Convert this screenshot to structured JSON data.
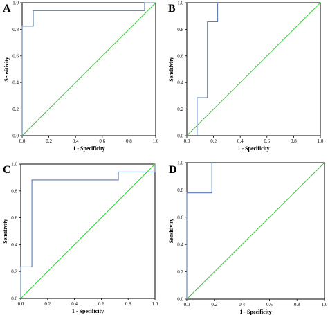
{
  "colors": {
    "roc": "#5b7cb4",
    "reference": "#3ec23e",
    "frame": "#000000"
  },
  "chart_data": [
    {
      "panel": "A",
      "type": "line",
      "xlabel": "1 - Specificity",
      "ylabel": "Sensitivity",
      "xlim": [
        0,
        1
      ],
      "ylim": [
        0,
        1
      ],
      "xticks": [
        "0.0",
        "0.2",
        "0.4",
        "0.6",
        "0.8",
        "1.0"
      ],
      "yticks": [
        "0.0",
        "0.2",
        "0.4",
        "0.6",
        "0.8",
        "1.0"
      ],
      "series": [
        {
          "x": [
            0,
            0,
            0.083,
            0.083,
            0.917,
            0.917,
            1
          ],
          "y": [
            0,
            0.824,
            0.824,
            0.941,
            0.941,
            1,
            1
          ]
        },
        {
          "x": [
            0,
            1
          ],
          "y": [
            0,
            1
          ]
        }
      ]
    },
    {
      "panel": "B",
      "type": "line",
      "xlabel": "1 - Specificity",
      "ylabel": "Sensitivity",
      "xlim": [
        0,
        1
      ],
      "ylim": [
        0,
        1
      ],
      "xticks": [
        "0.0",
        "0.2",
        "0.4",
        "0.6",
        "0.8",
        "1.0"
      ],
      "yticks": [
        "0.0",
        "0.2",
        "0.4",
        "0.6",
        "0.8",
        "1.0"
      ],
      "series": [
        {
          "x": [
            0.077,
            0.077,
            0.154,
            0.154,
            0.231,
            0.231
          ],
          "y": [
            0,
            0.286,
            0.286,
            0.857,
            0.857,
            1
          ]
        },
        {
          "x": [
            0,
            1
          ],
          "y": [
            0,
            1
          ]
        }
      ]
    },
    {
      "panel": "C",
      "type": "line",
      "xlabel": "1 - Specificity",
      "ylabel": "Sensitivity",
      "xlim": [
        0,
        1
      ],
      "ylim": [
        0,
        1
      ],
      "xticks": [
        "0.0",
        "0.2",
        "0.4",
        "0.6",
        "0.8",
        "1.0"
      ],
      "yticks": [
        "0.0",
        "0.2",
        "0.4",
        "0.6",
        "0.8",
        "1.0"
      ],
      "series": [
        {
          "x": [
            0,
            0,
            0.083,
            0.083,
            0.727,
            0.727,
            1,
            1
          ],
          "y": [
            0,
            0.235,
            0.235,
            0.882,
            0.882,
            0.941,
            0.941,
            1
          ]
        },
        {
          "x": [
            0,
            1
          ],
          "y": [
            0,
            1
          ]
        }
      ]
    },
    {
      "panel": "D",
      "type": "line",
      "xlabel": "1 - Specificity",
      "ylabel": "Sensitivity",
      "xlim": [
        0,
        1
      ],
      "ylim": [
        0,
        1
      ],
      "xticks": [
        "0.0",
        "0.2",
        "0.4",
        "0.6",
        "0.8",
        "1.0"
      ],
      "yticks": [
        "0.0",
        "0.2",
        "0.4",
        "0.6",
        "0.8",
        "1.0"
      ],
      "series": [
        {
          "x": [
            0,
            0,
            0.182,
            0.182
          ],
          "y": [
            0,
            0.778,
            0.778,
            1
          ]
        },
        {
          "x": [
            0,
            1
          ],
          "y": [
            0,
            1
          ]
        }
      ]
    }
  ]
}
